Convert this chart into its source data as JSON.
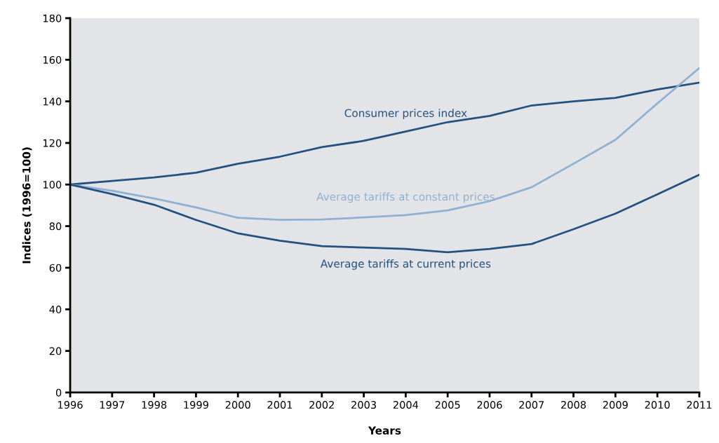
{
  "chart_data": {
    "type": "line",
    "xlabel": "Years",
    "ylabel": "Indices (1996=100)",
    "x": [
      1996,
      1997,
      1998,
      1999,
      2000,
      2001,
      2002,
      2003,
      2004,
      2005,
      2006,
      2007,
      2008,
      2009,
      2010,
      2011
    ],
    "series": [
      {
        "name": "Consumer prices index",
        "color": "#24507f",
        "values": [
          100,
          101.7,
          103.4,
          105.7,
          110,
          113.4,
          118,
          121,
          125.5,
          130,
          133,
          138,
          140,
          141.7,
          145.7,
          149
        ]
      },
      {
        "name": "Average tariffs at constant prices",
        "color": "#8fb0d0",
        "values": [
          100,
          97,
          93.3,
          89,
          84,
          83,
          83.2,
          84.2,
          85.3,
          87.6,
          92,
          98.7,
          110,
          121.5,
          139,
          156
        ]
      },
      {
        "name": "Average tariffs at current prices",
        "color": "#24507f",
        "values": [
          100,
          95.4,
          90.3,
          83,
          76.5,
          73,
          70.4,
          69.7,
          69,
          67.4,
          69,
          71.4,
          78.5,
          86,
          95.3,
          104.7
        ]
      }
    ],
    "xlim": [
      1996,
      2011
    ],
    "xticks": [
      1996,
      1997,
      1998,
      1999,
      2000,
      2001,
      2002,
      2003,
      2004,
      2005,
      2006,
      2007,
      2008,
      2009,
      2010,
      2011
    ],
    "ylim": [
      0,
      180
    ],
    "yticks": [
      0,
      20,
      40,
      60,
      80,
      100,
      120,
      140,
      160,
      180
    ],
    "grid": false,
    "legend": false,
    "marker": "none",
    "line_style": "solid"
  }
}
